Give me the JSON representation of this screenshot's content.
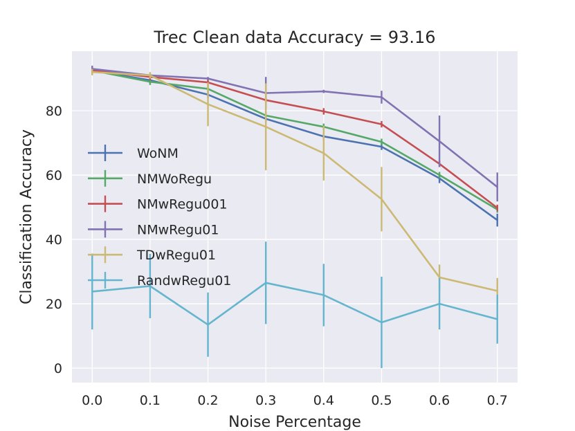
{
  "chart_data": {
    "type": "line",
    "title": "Trec Clean data Accuracy = 93.16",
    "xlabel": "Noise Percentage",
    "ylabel": "Classification Accuracy",
    "x": [
      0.0,
      0.1,
      0.2,
      0.3,
      0.4,
      0.5,
      0.6,
      0.7
    ],
    "x_tick_labels": [
      "0.0",
      "0.1",
      "0.2",
      "0.3",
      "0.4",
      "0.5",
      "0.6",
      "0.7"
    ],
    "y_ticks": [
      0,
      20,
      40,
      60,
      80
    ],
    "y_tick_labels": [
      "0",
      "20",
      "40",
      "60",
      "80"
    ],
    "xlim": [
      -0.035,
      0.735
    ],
    "ylim": [
      -4.5,
      98.5
    ],
    "grid": true,
    "legend_position": "center-left",
    "series": [
      {
        "name": "WoNM",
        "color": "#4c72b0",
        "values": [
          92.5,
          89.5,
          85.0,
          77.5,
          72.0,
          68.8,
          59.0,
          46.0
        ],
        "errors": [
          1.0,
          1.0,
          1.0,
          1.0,
          1.0,
          1.0,
          1.5,
          2.0
        ]
      },
      {
        "name": "NMWoRegu",
        "color": "#55a868",
        "values": [
          92.5,
          89.0,
          86.8,
          78.5,
          75.0,
          70.3,
          60.0,
          49.3
        ],
        "errors": [
          1.0,
          1.0,
          1.0,
          1.0,
          1.0,
          1.0,
          1.0,
          1.0
        ]
      },
      {
        "name": "NMwRegu001",
        "color": "#c44e52",
        "values": [
          92.5,
          90.5,
          88.8,
          83.3,
          79.8,
          75.8,
          63.5,
          49.8
        ],
        "errors": [
          1.0,
          1.0,
          1.0,
          1.0,
          1.0,
          1.0,
          1.0,
          1.0
        ]
      },
      {
        "name": "NMwRegu01",
        "color": "#8172b2",
        "values": [
          93.0,
          91.0,
          90.0,
          85.5,
          86.0,
          84.2,
          70.5,
          56.3
        ],
        "errors": [
          1.0,
          0.5,
          0.5,
          5.0,
          0.5,
          2.0,
          8.0,
          4.5
        ]
      },
      {
        "name": "TDwRegu01",
        "color": "#ccb974",
        "values": [
          92.0,
          91.0,
          82.0,
          75.0,
          66.8,
          52.5,
          28.2,
          24.0
        ],
        "errors": [
          1.0,
          1.0,
          6.8,
          13.5,
          8.5,
          10.0,
          4.0,
          4.0
        ]
      },
      {
        "name": "RandwRegu01",
        "color": "#64b5cd",
        "values": [
          23.8,
          25.5,
          13.5,
          26.5,
          22.7,
          14.2,
          20.0,
          15.2
        ],
        "errors": [
          11.8,
          10.0,
          10.0,
          12.8,
          9.7,
          14.2,
          8.0,
          7.6
        ]
      }
    ]
  }
}
